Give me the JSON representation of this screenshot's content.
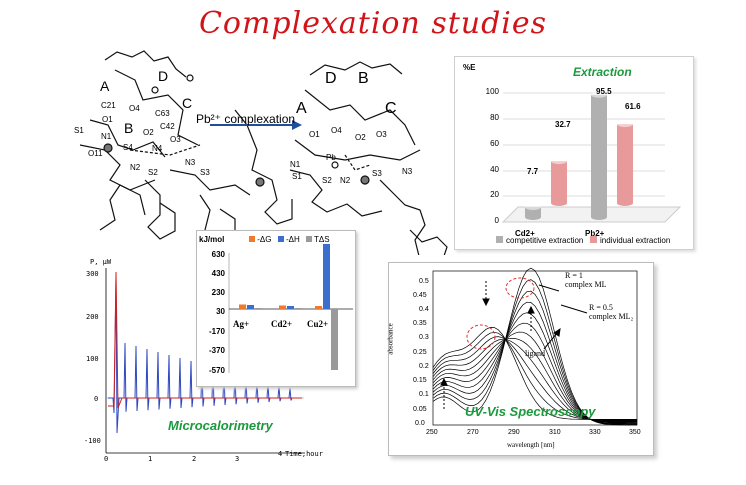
{
  "title": "Complexation studies",
  "structures": {
    "left_labels": [
      "A",
      "B",
      "C",
      "D",
      "C21",
      "O1",
      "O4",
      "O2",
      "O11",
      "N1",
      "S4",
      "N4",
      "N2",
      "S2",
      "C42",
      "C63",
      "O3",
      "N3",
      "S3",
      "S1"
    ],
    "right_labels": [
      "A",
      "B",
      "C",
      "D",
      "O1",
      "O4",
      "O2",
      "O3",
      "Pb",
      "N1",
      "S1",
      "S2",
      "N2",
      "S3",
      "N3"
    ],
    "arrow_label": "Pb²⁺ complexation"
  },
  "extraction": {
    "title": "Extraction",
    "y_label": "%E",
    "colors": {
      "competitive": "#b0b0b0",
      "individual": "#e89a9a"
    },
    "chart_data": {
      "type": "bar",
      "categories": [
        "Cd2+",
        "Pb2+"
      ],
      "y_ticks": [
        "100",
        "80",
        "60",
        "40",
        "20",
        "0"
      ],
      "series": [
        {
          "name": "competitive extraction",
          "values": [
            7.7,
            95.5
          ]
        },
        {
          "name": "individual extraction",
          "values": [
            32.7,
            61.6
          ]
        }
      ],
      "value_labels": [
        "7.7",
        "95.5",
        "32.7",
        "61.6"
      ],
      "ylim": [
        0,
        100
      ]
    }
  },
  "thermo": {
    "unit": "kJ/mol",
    "legend": [
      "-ΔG",
      "-ΔH",
      "TΔS"
    ],
    "colors": {
      "dG": "#f07a2a",
      "dH": "#3a6fcf",
      "TdS": "#9a9a9a"
    },
    "chart_data": {
      "type": "bar",
      "categories": [
        "Ag+",
        "Cd2+",
        "Cu2+"
      ],
      "y_ticks": [
        "630",
        "430",
        "230",
        "30",
        "-170",
        "-370",
        "-570"
      ],
      "series": [
        {
          "name": "-ΔG",
          "values": [
            45,
            35,
            30
          ]
        },
        {
          "name": "-ΔH",
          "values": [
            40,
            30,
            650
          ]
        },
        {
          "name": "TΔS",
          "values": [
            10,
            10,
            -610
          ]
        }
      ],
      "ylim": [
        -570,
        630
      ]
    }
  },
  "calorimetry": {
    "title": "Microcalorimetry",
    "y_unit": "P, μW",
    "x_unit": "Time,hour",
    "y_ticks": [
      "300",
      "200",
      "100",
      "0",
      "-100"
    ],
    "x_ticks": [
      "0",
      "1",
      "2",
      "3",
      "4"
    ]
  },
  "uvvis": {
    "title": "UV-Vis Spectroscopy",
    "y_label": "absorbance",
    "x_label": "wavelength [nm]",
    "x_ticks": [
      "250",
      "270",
      "290",
      "310",
      "330",
      "350"
    ],
    "y_ticks": [
      "0.0",
      "0.05",
      "0.1",
      "0.15",
      "0.2",
      "0.25",
      "0.3",
      "0.35",
      "0.4",
      "0.45",
      "0.5"
    ],
    "ann_ml_1": "R = 1",
    "ann_ml_2": "complex ML",
    "ann_ml2_1": "R = 0.5",
    "ann_ml2_2": "complex ML₂",
    "ann_ligand": "ligand"
  }
}
